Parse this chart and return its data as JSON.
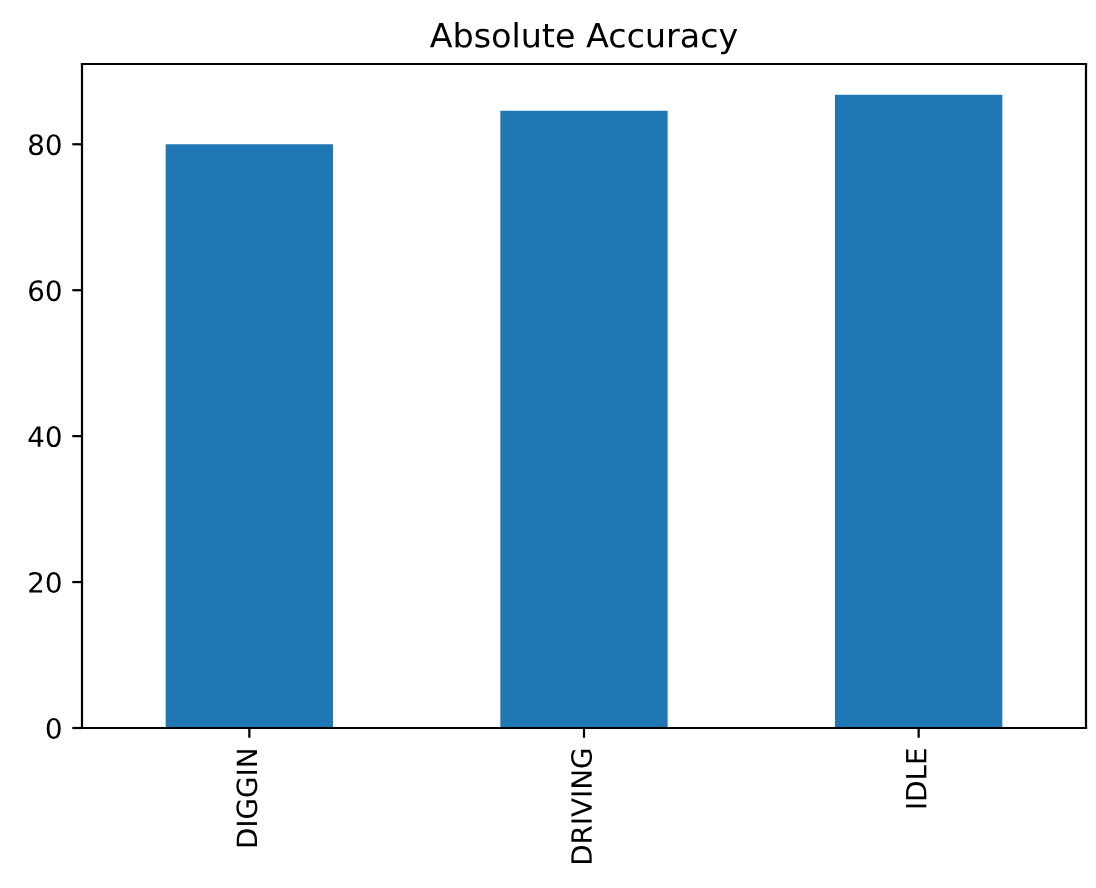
{
  "chart_data": {
    "type": "bar",
    "title": "Absolute Accuracy",
    "categories": [
      "DIGGIN",
      "DRIVING",
      "IDLE"
    ],
    "values": [
      80.0,
      84.6,
      86.8
    ],
    "color": "#1f77b4",
    "ylim": [
      0,
      91
    ],
    "yticks": [
      0,
      20,
      40,
      60,
      80
    ],
    "grid": false
  }
}
